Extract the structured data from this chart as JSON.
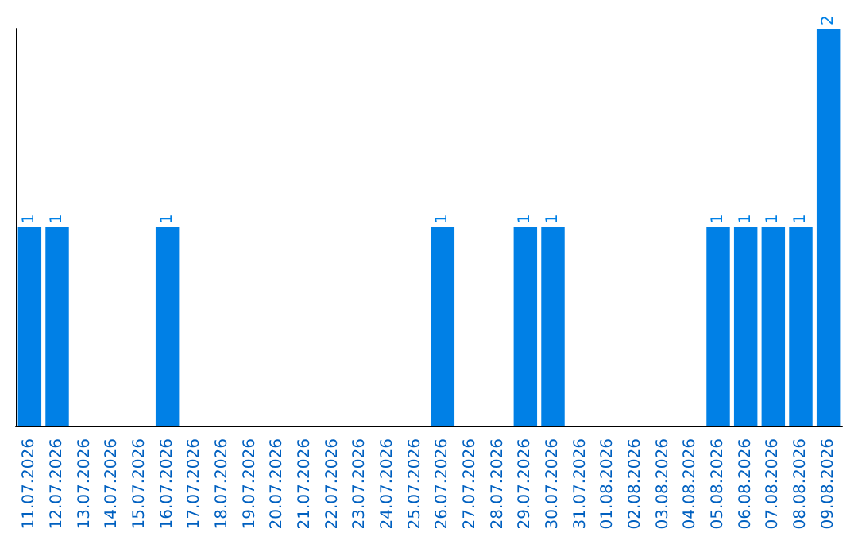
{
  "chart_data": {
    "type": "bar",
    "categories": [
      "11.07.2026",
      "12.07.2026",
      "13.07.2026",
      "14.07.2026",
      "15.07.2026",
      "16.07.2026",
      "17.07.2026",
      "18.07.2026",
      "19.07.2026",
      "20.07.2026",
      "21.07.2026",
      "22.07.2026",
      "23.07.2026",
      "24.07.2026",
      "25.07.2026",
      "26.07.2026",
      "27.07.2026",
      "28.07.2026",
      "29.07.2026",
      "30.07.2026",
      "31.07.2026",
      "01.08.2026",
      "02.08.2026",
      "03.08.2026",
      "04.08.2026",
      "05.08.2026",
      "06.08.2026",
      "07.08.2026",
      "08.08.2026",
      "09.08.2026"
    ],
    "values": [
      1,
      1,
      0,
      0,
      0,
      1,
      0,
      0,
      0,
      0,
      0,
      0,
      0,
      0,
      0,
      1,
      0,
      0,
      1,
      1,
      0,
      0,
      0,
      0,
      0,
      1,
      1,
      1,
      1,
      2
    ],
    "value_labels": [
      "1",
      "1",
      null,
      null,
      null,
      "1",
      null,
      null,
      null,
      null,
      null,
      null,
      null,
      null,
      null,
      "1",
      null,
      null,
      "1",
      "1",
      null,
      null,
      null,
      null,
      null,
      "1",
      "1",
      "1",
      "1",
      "2"
    ],
    "color": "#0080e6",
    "grid": false,
    "tick_labels": "x"
  }
}
